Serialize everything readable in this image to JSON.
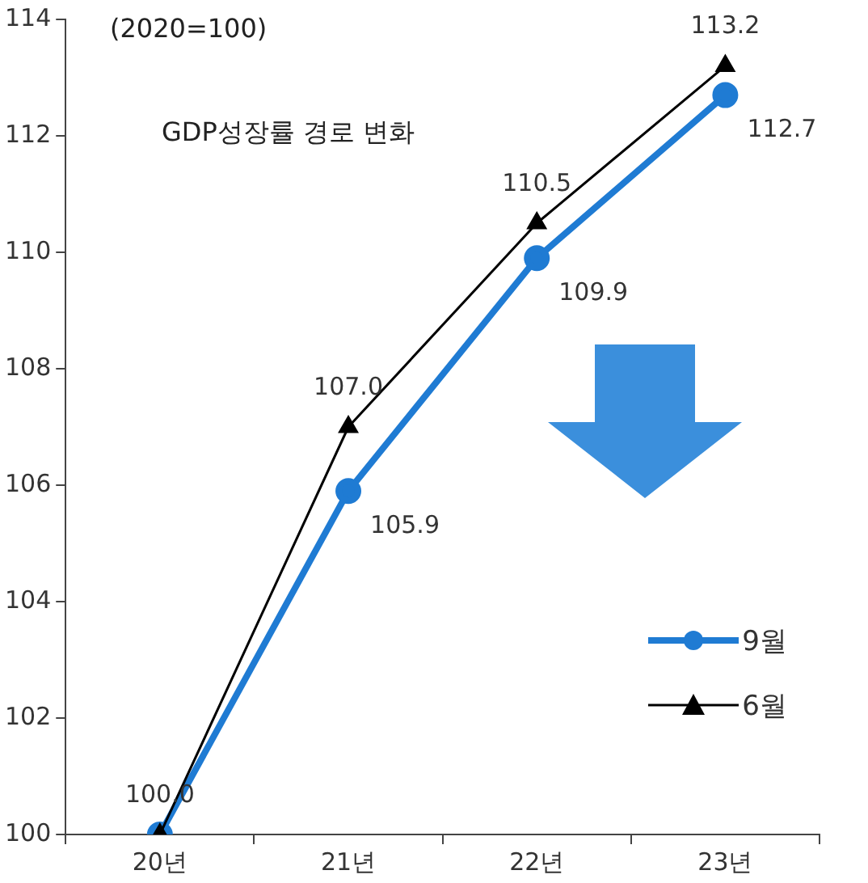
{
  "chart_data": {
    "type": "line",
    "categories": [
      "20년",
      "21년",
      "22년",
      "23년"
    ],
    "series": [
      {
        "name": "9월",
        "color": "#1f7bd3",
        "values": [
          100.0,
          105.9,
          109.9,
          112.7
        ],
        "marker": "circle",
        "value_labels": [
          null,
          "105.9",
          "109.9",
          "112.7"
        ]
      },
      {
        "name": "6월",
        "color": "#000000",
        "values": [
          100.0,
          107.0,
          110.5,
          113.2
        ],
        "marker": "triangle",
        "value_labels": [
          "100.0",
          "107.0",
          "110.5",
          "113.2"
        ]
      }
    ],
    "ylim": [
      100,
      114
    ],
    "yticks": [
      100,
      102,
      104,
      106,
      108,
      110,
      112,
      114
    ],
    "annotations": [
      "(2020=100)",
      "GDP성장률 경로 변화"
    ],
    "legend": "bottom right",
    "grid": false,
    "line_style": "solid"
  }
}
